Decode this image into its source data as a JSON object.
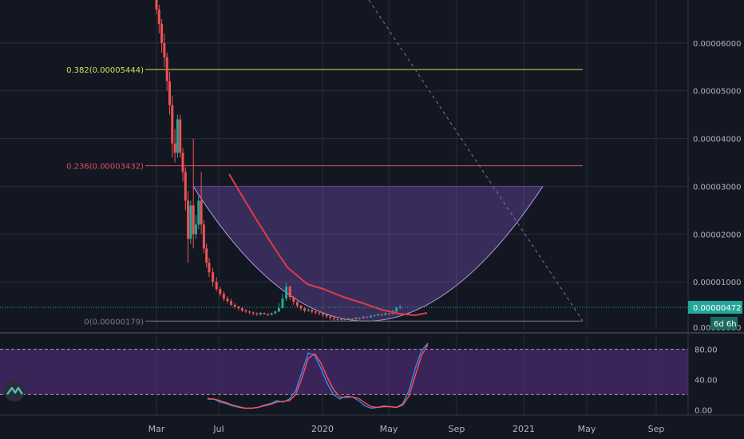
{
  "colors": {
    "background": "#131722",
    "grid": "#2a2e39",
    "up": "#26a69a",
    "down": "#ef5350",
    "fib_0382": "#c8e65a",
    "fib_0236": "#e04a5e",
    "fib_0": "#787b86",
    "cup_fill": "#7e57c2",
    "ma": "#e03c46",
    "rsi_band": "#4a2a6e",
    "rsi_k": "#2d8fe6",
    "rsi_d": "#ff4d5a",
    "current_price_bg": "#26a69a",
    "countdown_bg": "#1b6b64"
  },
  "chart_data": [
    {
      "type": "candlestick",
      "title": "",
      "x_axis_ticks": [
        "Mar",
        "Jul",
        "2020",
        "May",
        "Sep",
        "2021",
        "May",
        "Sep"
      ],
      "y_axis_ticks": [
        "0.00006000",
        "0.00005000",
        "0.00004000",
        "0.00003000",
        "0.00002000",
        "0.00001000",
        "0.00000000"
      ],
      "ylim": [
        0,
        6.9e-05
      ],
      "current_price": "0.00000472",
      "countdown": "6d 6h",
      "fib_levels": [
        {
          "label": "0.382(0.00005444)",
          "value": 5.444e-05
        },
        {
          "label": "0.236(0.00003432)",
          "value": 3.432e-05
        },
        {
          "label": "0(0.00000179)",
          "value": 1.79e-06
        }
      ],
      "candles": [
        [
          6.9e-05,
          6.7e-05,
          6.9e-05,
          6.6e-05
        ],
        [
          6.7e-05,
          6.4e-05,
          6.8e-05,
          6.2e-05
        ],
        [
          6.4e-05,
          6e-05,
          6.5e-05,
          5.8e-05
        ],
        [
          6e-05,
          5.7e-05,
          6.2e-05,
          5.5e-05
        ],
        [
          5.7e-05,
          5.2e-05,
          5.8e-05,
          5e-05
        ],
        [
          5.2e-05,
          4.7e-05,
          5.4e-05,
          4.5e-05
        ],
        [
          4.7e-05,
          3.9e-05,
          4.9e-05,
          3.6e-05
        ],
        [
          3.9e-05,
          3.7e-05,
          4.2e-05,
          3.5e-05
        ],
        [
          3.7e-05,
          4.4e-05,
          4.5e-05,
          3.6e-05
        ],
        [
          4.4e-05,
          3.7e-05,
          4.5e-05,
          3.6e-05
        ],
        [
          3.7e-05,
          3.3e-05,
          3.8e-05,
          3.1e-05
        ],
        [
          3.3e-05,
          2.7e-05,
          3.4e-05,
          2.5e-05
        ],
        [
          2.7e-05,
          1.9e-05,
          2.9e-05,
          1.4e-05
        ],
        [
          1.9e-05,
          2.6e-05,
          2.7e-05,
          1.8e-05
        ],
        [
          2.6e-05,
          2e-05,
          4e-05,
          1.7e-05
        ],
        [
          2e-05,
          2.2e-05,
          2.4e-05,
          1.9e-05
        ],
        [
          2.2e-05,
          2.7e-05,
          2.8e-05,
          2.1e-05
        ],
        [
          2.7e-05,
          2.2e-05,
          3.3e-05,
          2e-05
        ],
        [
          2.2e-05,
          1.7e-05,
          2.3e-05,
          1.6e-05
        ],
        [
          1.7e-05,
          1.4e-05,
          1.8e-05,
          1.3e-05
        ],
        [
          1.4e-05,
          1.2e-05,
          1.5e-05,
          1.1e-05
        ],
        [
          1.2e-05,
          1e-05,
          1.3e-05,
          9e-06
        ],
        [
          1e-05,
          8.5e-06,
          1.1e-05,
          8e-06
        ],
        [
          8.5e-06,
          7.5e-06,
          9e-06,
          7e-06
        ],
        [
          7.5e-06,
          6.5e-06,
          8e-06,
          6e-06
        ],
        [
          6.5e-06,
          6e-06,
          7e-06,
          5.5e-06
        ],
        [
          6e-06,
          5.2e-06,
          6.5e-06,
          5e-06
        ],
        [
          5.2e-06,
          4.8e-06,
          5.6e-06,
          4.4e-06
        ],
        [
          4.8e-06,
          4.5e-06,
          5e-06,
          4e-06
        ],
        [
          4.5e-06,
          4e-06,
          4.8e-06,
          3.7e-06
        ],
        [
          4e-06,
          3.8e-06,
          4.3e-06,
          3.5e-06
        ],
        [
          3.8e-06,
          3.6e-06,
          4e-06,
          3.2e-06
        ],
        [
          3.6e-06,
          3.4e-06,
          3.8e-06,
          3e-06
        ],
        [
          3.4e-06,
          3.2e-06,
          3.6e-06,
          2.9e-06
        ],
        [
          3.2e-06,
          3.5e-06,
          3.7e-06,
          3e-06
        ],
        [
          3.5e-06,
          3.3e-06,
          3.6e-06,
          3.1e-06
        ],
        [
          3.3e-06,
          3.1e-06,
          3.4e-06,
          2.8e-06
        ],
        [
          3.1e-06,
          3.4e-06,
          3.6e-06,
          3e-06
        ],
        [
          3.4e-06,
          3.8e-06,
          4e-06,
          3.3e-06
        ],
        [
          3.8e-06,
          4.5e-06,
          5.5e-06,
          3.7e-06
        ],
        [
          4.5e-06,
          6.5e-06,
          7.5e-06,
          4.4e-06
        ],
        [
          6.5e-06,
          9e-06,
          9.8e-06,
          6e-06
        ],
        [
          9e-06,
          6.8e-06,
          9.2e-06,
          6.2e-06
        ],
        [
          6.8e-06,
          5.8e-06,
          7e-06,
          5.2e-06
        ],
        [
          5.8e-06,
          5e-06,
          6e-06,
          4.5e-06
        ],
        [
          5e-06,
          4.5e-06,
          5.2e-06,
          4e-06
        ],
        [
          4.5e-06,
          4e-06,
          4.8e-06,
          3.6e-06
        ],
        [
          4e-06,
          4.2e-06,
          4.5e-06,
          3.7e-06
        ],
        [
          4.2e-06,
          3.8e-06,
          4.3e-06,
          3.4e-06
        ],
        [
          3.8e-06,
          3.6e-06,
          4e-06,
          3.2e-06
        ],
        [
          3.6e-06,
          3.4e-06,
          3.7e-06,
          3e-06
        ],
        [
          3.4e-06,
          3.1e-06,
          3.5e-06,
          2.7e-06
        ],
        [
          3.1e-06,
          2.8e-06,
          3.2e-06,
          2.4e-06
        ],
        [
          2.8e-06,
          2.5e-06,
          2.9e-06,
          2e-06
        ],
        [
          2.5e-06,
          2.2e-06,
          2.6e-06,
          1.8e-06
        ],
        [
          2.2e-06,
          2e-06,
          2.4e-06,
          1.8e-06
        ],
        [
          2e-06,
          2.2e-06,
          2.4e-06,
          1.8e-06
        ],
        [
          2.2e-06,
          2.1e-06,
          2.3e-06,
          1.9e-06
        ],
        [
          2.1e-06,
          2.3e-06,
          2.5e-06,
          2e-06
        ],
        [
          2.3e-06,
          2.2e-06,
          2.4e-06,
          2e-06
        ],
        [
          2.2e-06,
          2.5e-06,
          2.7e-06,
          2.1e-06
        ],
        [
          2.5e-06,
          2.4e-06,
          2.6e-06,
          2.1e-06
        ],
        [
          2.4e-06,
          2.7e-06,
          2.9e-06,
          2.3e-06
        ],
        [
          2.7e-06,
          2.6e-06,
          2.8e-06,
          2.4e-06
        ],
        [
          2.6e-06,
          2.9e-06,
          3.1e-06,
          2.5e-06
        ],
        [
          2.9e-06,
          3e-06,
          3.2e-06,
          2.7e-06
        ],
        [
          3e-06,
          3.2e-06,
          3.4e-06,
          2.8e-06
        ],
        [
          3.2e-06,
          3.1e-06,
          3.4e-06,
          2.9e-06
        ],
        [
          3.1e-06,
          3.4e-06,
          3.6e-06,
          3e-06
        ],
        [
          3.4e-06,
          3.3e-06,
          3.5e-06,
          3.1e-06
        ],
        [
          3.3e-06,
          3.8e-06,
          4.2e-06,
          3.2e-06
        ],
        [
          3.8e-06,
          4.5e-06,
          4.8e-06,
          3.6e-06
        ],
        [
          4.5e-06,
          4.7e-06,
          5.2e-06,
          4.3e-06
        ]
      ],
      "ma_line": {
        "x_index": [
          12,
          16,
          20,
          25,
          30,
          35,
          40,
          45,
          50,
          55,
          60,
          65,
          70,
          73
        ],
        "values": [
          3.3e-05,
          2.45e-05,
          1.8e-05,
          1.18e-05,
          7.5e-06,
          6.5e-06,
          8.5e-06,
          7e-06,
          5.5e-06,
          4.2e-06,
          3.2e-06,
          2.7e-06,
          3.2e-06,
          3.8e-06
        ]
      },
      "cup": {
        "left_index": 13,
        "right_index": 121,
        "bottom_index": 65,
        "top_value": 3e-05,
        "bottom_value": 1.79e-06
      },
      "trend_line": {
        "start_index": 68,
        "start_value": 6.9e-05,
        "end_index": 136,
        "end_value": 2.5e-06
      }
    },
    {
      "type": "line",
      "title": "",
      "y_axis_ticks": [
        "80.00",
        "40.00",
        "0.00"
      ],
      "ylim": [
        -5,
        90
      ],
      "band": [
        20,
        80
      ],
      "series": [
        {
          "values": [
            15,
            14,
            10,
            8,
            5,
            3,
            2,
            2,
            3,
            6,
            8,
            12,
            10,
            14,
            25,
            50,
            75,
            72,
            55,
            35,
            20,
            14,
            18,
            17,
            12,
            5,
            2,
            3,
            5,
            4,
            3,
            8,
            25,
            55,
            78,
            88
          ]
        },
        {
          "values": [
            14,
            14,
            12,
            9,
            6,
            4,
            2,
            2,
            3,
            5,
            7,
            10,
            11,
            12,
            20,
            42,
            68,
            74,
            62,
            43,
            27,
            17,
            16,
            17,
            15,
            9,
            4,
            3,
            4,
            4,
            3,
            6,
            18,
            45,
            72,
            86
          ]
        }
      ]
    }
  ]
}
